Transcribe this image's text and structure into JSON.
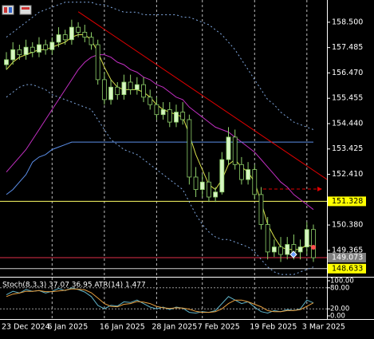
{
  "chart_data": [
    {
      "type": "candlestick",
      "categories": [
        "23 Dec 2024",
        null,
        null,
        null,
        null,
        null,
        null,
        "6 Jan 2025",
        null,
        null,
        null,
        null,
        null,
        null,
        null,
        "16 Jan 2025",
        null,
        null,
        null,
        null,
        null,
        null,
        null,
        "28 Jan 2025",
        null,
        null,
        null,
        null,
        null,
        null,
        "7 Feb 2025",
        null,
        null,
        null,
        null,
        null,
        null,
        null,
        "19 Feb 2025",
        null,
        null,
        null,
        null,
        null,
        null,
        null,
        "3 Mar 2025",
        null
      ],
      "open": [
        156.8,
        157.0,
        157.4,
        157.2,
        157.5,
        157.3,
        157.6,
        157.4,
        157.7,
        158.0,
        157.8,
        158.3,
        158.1,
        157.9,
        157.6,
        156.2,
        155.4,
        155.9,
        155.6,
        156.1,
        155.8,
        156.0,
        155.5,
        155.2,
        154.8,
        155.0,
        154.5,
        154.9,
        154.6,
        152.3,
        151.8,
        152.1,
        151.5,
        151.7,
        153.0,
        153.9,
        152.8,
        152.2,
        152.6,
        151.6,
        150.4,
        149.3,
        149.5,
        149.2,
        149.6,
        149.3,
        149.5,
        150.2
      ],
      "high": [
        157.3,
        157.7,
        157.6,
        157.8,
        157.7,
        157.9,
        157.8,
        157.9,
        158.3,
        158.2,
        158.6,
        158.5,
        158.4,
        158.1,
        157.8,
        156.5,
        156.2,
        156.1,
        156.4,
        156.4,
        156.3,
        156.3,
        155.8,
        155.5,
        155.3,
        155.3,
        155.2,
        155.3,
        154.8,
        152.7,
        152.4,
        152.5,
        151.9,
        153.3,
        154.3,
        154.2,
        153.1,
        152.9,
        152.8,
        151.9,
        150.7,
        149.8,
        149.9,
        149.9,
        150.0,
        149.8,
        150.5,
        150.4
      ],
      "low": [
        156.6,
        156.8,
        157.0,
        157.0,
        157.1,
        157.1,
        157.2,
        157.2,
        157.5,
        157.6,
        157.6,
        157.9,
        157.7,
        157.4,
        156.0,
        155.2,
        155.2,
        155.4,
        155.4,
        155.6,
        155.6,
        155.3,
        155.0,
        154.6,
        154.6,
        154.3,
        154.3,
        154.4,
        152.0,
        151.5,
        151.5,
        151.3,
        151.3,
        151.6,
        152.8,
        152.6,
        152.0,
        152.0,
        151.4,
        150.2,
        149.0,
        149.1,
        148.9,
        149.0,
        149.0,
        149.0,
        149.2,
        148.9
      ],
      "close": [
        157.0,
        157.4,
        157.2,
        157.5,
        157.3,
        157.6,
        157.4,
        157.7,
        158.0,
        157.8,
        158.3,
        158.1,
        157.9,
        157.6,
        156.2,
        155.4,
        155.9,
        155.6,
        156.1,
        155.8,
        156.0,
        155.5,
        155.2,
        154.8,
        155.0,
        154.5,
        154.9,
        154.6,
        152.3,
        151.8,
        152.1,
        151.5,
        151.7,
        153.0,
        153.9,
        152.8,
        152.2,
        152.6,
        151.6,
        150.4,
        149.3,
        149.5,
        149.2,
        149.6,
        149.3,
        149.5,
        150.2,
        149.07
      ],
      "up_color": "#d6f5c2",
      "down_color": "#000000",
      "outline_color": "#8fd16a",
      "series": [
        {
          "color": "#c22fc2",
          "dash": false,
          "values": [
            152.5,
            152.8,
            153.1,
            153.4,
            153.8,
            154.2,
            154.6,
            155.0,
            155.4,
            155.8,
            156.2,
            156.6,
            156.9,
            157.1,
            157.2,
            157.2,
            157.1,
            156.9,
            156.8,
            156.6,
            156.5,
            156.3,
            156.2,
            156.0,
            155.9,
            155.7,
            155.5,
            155.4,
            155.1,
            154.9,
            154.7,
            154.5,
            154.3,
            154.2,
            154.1,
            153.9,
            153.7,
            153.5,
            153.3,
            153.0,
            152.7,
            152.4,
            152.1,
            151.9,
            151.6,
            151.4,
            151.2,
            151.0
          ]
        },
        {
          "color": "#d8e04a",
          "dash": false,
          "values": [
            156.6,
            156.9,
            157.1,
            157.2,
            157.3,
            157.4,
            157.4,
            157.5,
            157.6,
            157.7,
            157.9,
            158.0,
            158.0,
            157.8,
            157.3,
            156.7,
            156.2,
            155.9,
            155.8,
            155.8,
            155.8,
            155.7,
            155.5,
            155.2,
            155.0,
            154.9,
            154.8,
            154.7,
            154.0,
            153.2,
            152.6,
            152.0,
            151.8,
            152.2,
            152.8,
            153.0,
            152.7,
            152.5,
            152.1,
            151.3,
            150.4,
            149.9,
            149.5,
            149.4,
            149.4,
            149.4,
            149.6,
            149.5
          ]
        },
        {
          "color": "#7fa7e0",
          "dash": true,
          "values": [
            157.9,
            158.1,
            158.3,
            158.5,
            158.7,
            158.9,
            159.0,
            159.1,
            159.2,
            159.3,
            159.3,
            159.3,
            159.3,
            159.3,
            159.2,
            159.2,
            159.1,
            159.0,
            158.9,
            158.9,
            158.9,
            158.8,
            158.8,
            158.8,
            158.8,
            158.8,
            158.8,
            158.7,
            158.7,
            158.6,
            158.5,
            158.4,
            158.2,
            158.0,
            157.7,
            157.4,
            157.0,
            156.6,
            156.2,
            155.8,
            155.4,
            155.2,
            154.9,
            154.7,
            154.5,
            154.4,
            154.3,
            154.2
          ]
        },
        {
          "color": "#7fa7e0",
          "dash": true,
          "values": [
            155.5,
            155.7,
            155.9,
            156.0,
            156.0,
            155.9,
            155.8,
            155.6,
            155.5,
            155.4,
            155.3,
            155.2,
            155.1,
            155.0,
            154.6,
            154.2,
            153.8,
            153.6,
            153.4,
            153.3,
            153.2,
            153.0,
            152.8,
            152.6,
            152.4,
            152.2,
            152.0,
            151.8,
            151.3,
            150.8,
            150.4,
            150.1,
            149.9,
            149.8,
            149.8,
            149.7,
            149.6,
            149.5,
            149.3,
            149.0,
            148.7,
            148.5,
            148.4,
            148.4,
            148.4,
            148.5,
            148.6,
            148.7
          ]
        },
        {
          "color": "#5b8ee8",
          "dash": false,
          "values": [
            151.6,
            151.8,
            152.1,
            152.4,
            152.9,
            153.1,
            153.2,
            153.4,
            153.5,
            153.6,
            153.7,
            153.7,
            153.7,
            153.7,
            153.7,
            153.7,
            153.7,
            153.7,
            153.7,
            153.7,
            153.7,
            153.7,
            153.7,
            153.7,
            153.7,
            153.7,
            153.7,
            153.7,
            153.7,
            153.7,
            153.7,
            153.7,
            153.7,
            153.7,
            153.7,
            153.7,
            153.7,
            153.7,
            153.7,
            153.7,
            153.7,
            153.7,
            153.7,
            153.7,
            153.7,
            153.7,
            153.7,
            153.7
          ]
        }
      ],
      "trendline": {
        "color": "#e00000",
        "values": [
          158.92,
          152.57
        ]
      },
      "level": {
        "color": "#e00000",
        "value": 151.82
      },
      "price_labels": [
        {
          "value": 151.328,
          "color": "#ffff00",
          "text_color": "#000000",
          "line_color": "#ffff66"
        },
        {
          "value": 149.073,
          "color": "#808080",
          "text_color": "#ffffff",
          "line_color": "#e0304a"
        },
        {
          "value": 148.633,
          "color": "#ffff00",
          "text_color": "#000000",
          "line_color": "#d0d0d0"
        }
      ],
      "ylim": [
        148.37,
        159.39
      ],
      "yticks": [
        {
          "value": 158.5,
          "label": "158.500"
        },
        157.485,
        {
          "value": 156.47,
          "label": "156.470"
        },
        155.455,
        {
          "value": 154.44,
          "label": "154.440"
        },
        153.425,
        {
          "value": 152.41,
          "label": "152.410"
        },
        {
          "value": 150.38,
          "label": "150.380"
        },
        149.365
      ]
    },
    {
      "type": "line",
      "title": "Stoch(8,3,3) 37.07 36.95 ATR(14) 1.477",
      "series": [
        {
          "color": "#5fb3c8",
          "dash": false,
          "values": [
            60,
            70,
            65,
            75,
            70,
            72,
            65,
            70,
            78,
            72,
            80,
            75,
            68,
            55,
            30,
            20,
            30,
            28,
            40,
            38,
            45,
            35,
            25,
            20,
            25,
            18,
            25,
            22,
            10,
            8,
            12,
            10,
            15,
            35,
            55,
            45,
            35,
            40,
            25,
            12,
            8,
            15,
            12,
            18,
            15,
            20,
            45,
            37.07
          ]
        },
        {
          "color": "#e8a040",
          "dash": false,
          "values": [
            55,
            62,
            65,
            70,
            70,
            72,
            69,
            69,
            71,
            73,
            77,
            76,
            74,
            66,
            51,
            35,
            27,
            26,
            33,
            35,
            41,
            39,
            35,
            27,
            23,
            21,
            23,
            22,
            19,
            13,
            10,
            10,
            12,
            20,
            35,
            45,
            45,
            40,
            33,
            26,
            15,
            12,
            12,
            15,
            15,
            18,
            27,
            36.95
          ]
        }
      ],
      "ylim": [
        0,
        100
      ],
      "yticks": [
        {
          "value": 100,
          "label": "100.00"
        },
        {
          "value": 80,
          "label": "80.00"
        },
        {
          "value": 20,
          "label": "20.00"
        },
        {
          "value": 0,
          "label": "0.00"
        }
      ],
      "levels": [
        80,
        20
      ]
    }
  ]
}
